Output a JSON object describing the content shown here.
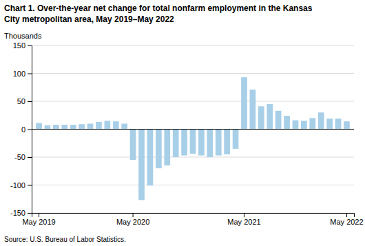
{
  "chart_data": {
    "type": "bar",
    "title": "Chart 1. Over-the-year net change for total nonfarm employment in the Kansas",
    "subtitle": "City metropolitan area, May 2019–May  2022",
    "y_label": "Thousands",
    "annotations": [
      "Source: U.S. Bureau of Labor Statistics."
    ],
    "categories": [
      "May 2019",
      null,
      null,
      null,
      null,
      null,
      null,
      null,
      null,
      null,
      null,
      "May 2020",
      null,
      null,
      null,
      null,
      null,
      null,
      null,
      null,
      null,
      null,
      null,
      null,
      "May 2021",
      null,
      null,
      null,
      null,
      null,
      null,
      null,
      null,
      null,
      null,
      null,
      "May 2022"
    ],
    "values": [
      11,
      7,
      8,
      8,
      8,
      9,
      10,
      13,
      15,
      14,
      10,
      -55,
      -127,
      -101,
      -70,
      -65,
      -50,
      -47,
      -44,
      -47,
      -50,
      -47,
      -45,
      -35,
      93,
      71,
      41,
      45,
      33,
      24,
      16,
      15,
      20,
      30,
      19,
      19,
      14
    ],
    "color": "#a8cfe8",
    "ylim": [
      -150,
      150
    ],
    "yticks": [
      -150,
      -100,
      -50,
      0,
      50,
      100,
      150
    ],
    "grid": true
  }
}
